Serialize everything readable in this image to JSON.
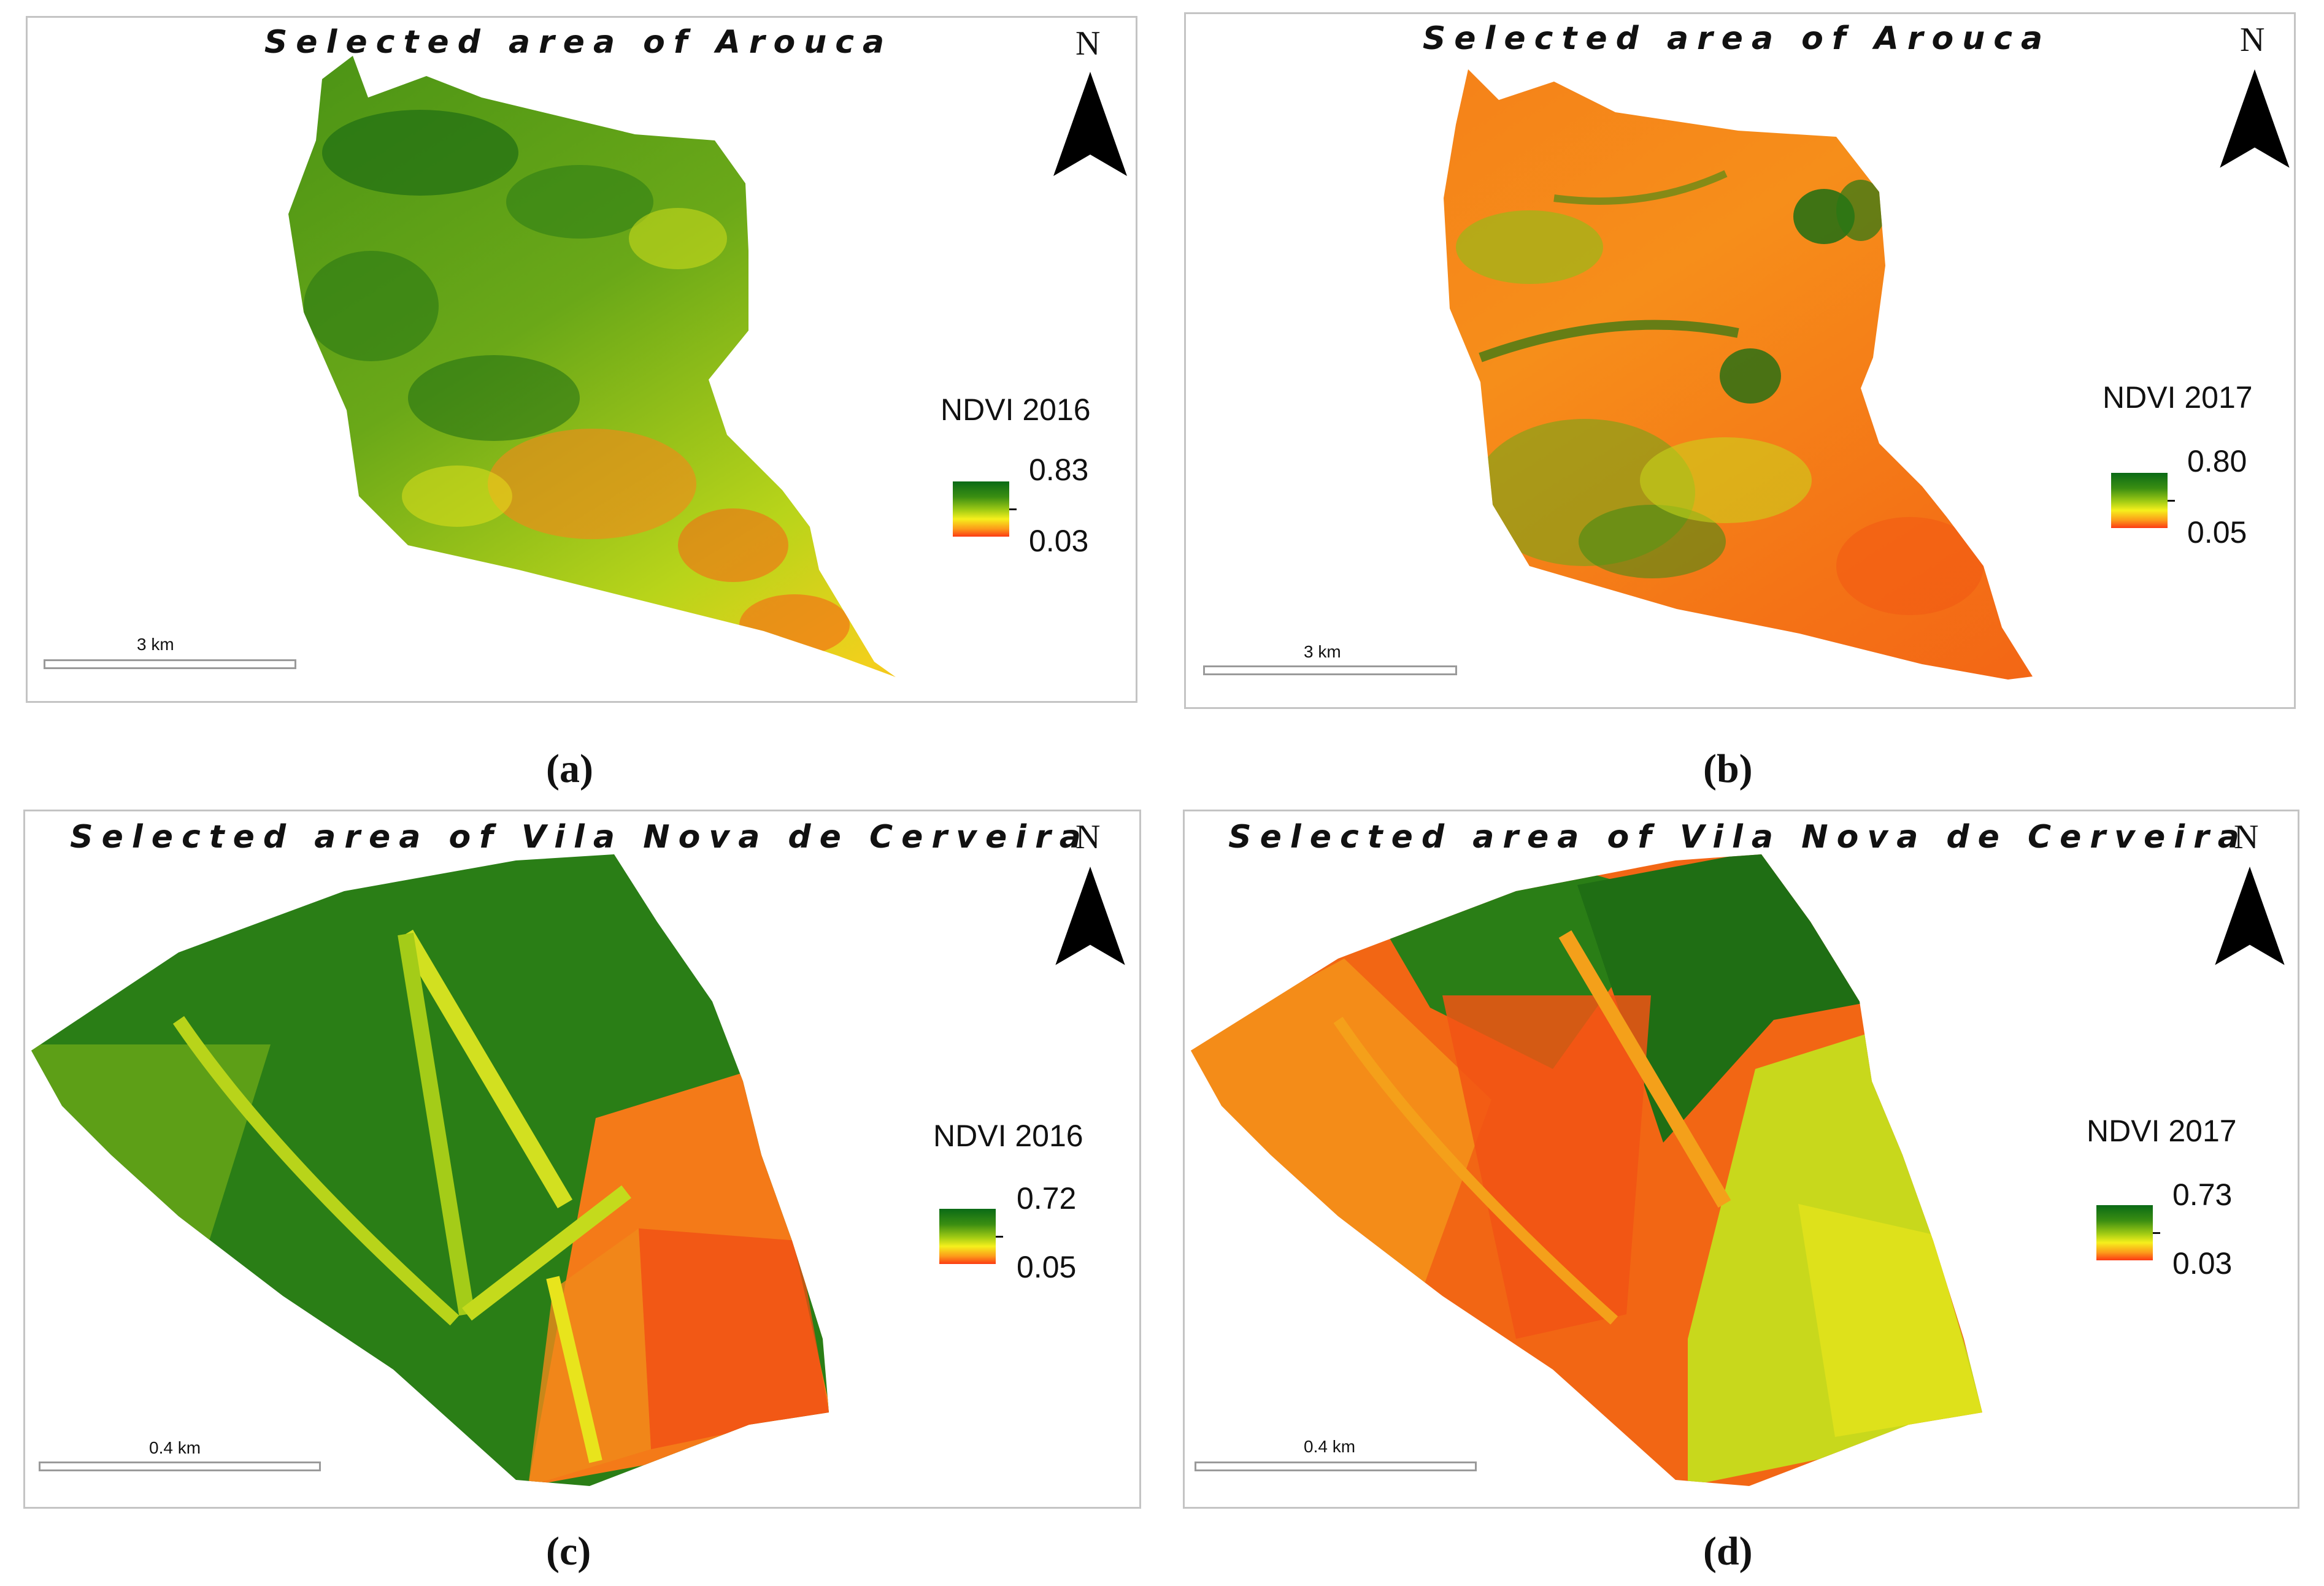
{
  "panels": [
    {
      "title": "Selected area of Arouca",
      "north": "N",
      "legend_title": "NDVI 2016",
      "legend_max": "0.83",
      "legend_min": "0.03",
      "scale_label": "3 km",
      "caption": "(a)",
      "dominant_class": "vegetated-green"
    },
    {
      "title": "Selected area of Arouca",
      "north": "N",
      "legend_title": "NDVI 2017",
      "legend_max": "0.80",
      "legend_min": "0.05",
      "scale_label": "3 km",
      "caption": "(b)",
      "dominant_class": "burned-orange"
    },
    {
      "title": "Selected area of Vila Nova de Cerveira",
      "north": "N",
      "legend_title": "NDVI 2016",
      "legend_max": "0.72",
      "legend_min": "0.05",
      "scale_label": "0.4 km",
      "caption": "(c)",
      "dominant_class": "vegetated-green"
    },
    {
      "title": "Selected area of Vila Nova de Cerveira",
      "north": "N",
      "legend_title": "NDVI 2017",
      "legend_max": "0.73",
      "legend_min": "0.03",
      "scale_label": "0.4 km",
      "caption": "(d)",
      "dominant_class": "burned-orange"
    }
  ],
  "colors": {
    "ndvi_high": "#0a6a16",
    "ndvi_mid": "#f6f01c",
    "ndvi_low": "#fc3a14",
    "frame_border": "#c4c4c4"
  },
  "icons": [
    "north-arrow-icon"
  ]
}
